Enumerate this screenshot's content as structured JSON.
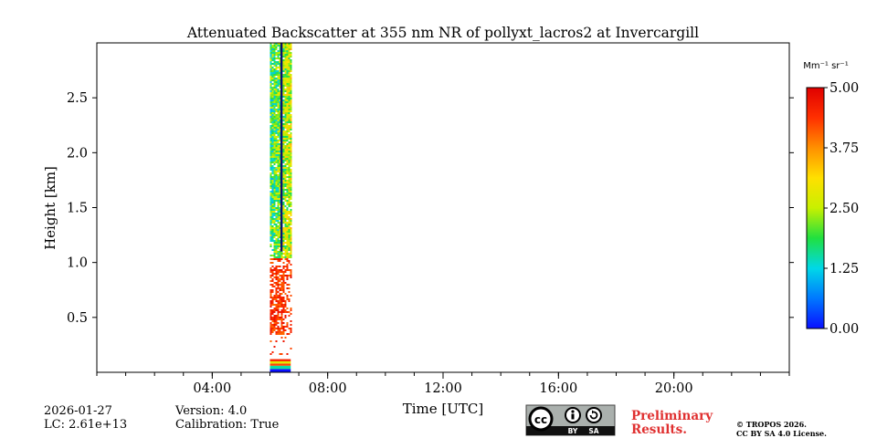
{
  "chart_data": {
    "type": "heatmap",
    "title": "Attenuated Backscatter at 355 nm NR of pollyxt_lacros2 at Invercargill",
    "xlabel": "Time [UTC]",
    "ylabel": "Height [km]",
    "xlim_hours": [
      0,
      24
    ],
    "ylim_km": [
      0,
      3.0
    ],
    "x_ticks": [
      {
        "value": 4,
        "label": "04:00"
      },
      {
        "value": 8,
        "label": "08:00"
      },
      {
        "value": 12,
        "label": "12:00"
      },
      {
        "value": 16,
        "label": "16:00"
      },
      {
        "value": 20,
        "label": "20:00"
      }
    ],
    "x_minor_step_hours": 1,
    "y_ticks": [
      {
        "value": 0.5,
        "label": "0.5"
      },
      {
        "value": 1.0,
        "label": "1.0"
      },
      {
        "value": 1.5,
        "label": "1.5"
      },
      {
        "value": 2.0,
        "label": "2.0"
      },
      {
        "value": 2.5,
        "label": "2.5"
      }
    ],
    "colorbar": {
      "unit_label": "Mm⁻¹ sr⁻¹",
      "range": [
        0.0,
        5.0
      ],
      "ticks": [
        {
          "value": 0.0,
          "label": "0.00"
        },
        {
          "value": 1.25,
          "label": "1.25"
        },
        {
          "value": 2.5,
          "label": "2.50"
        },
        {
          "value": 3.75,
          "label": "3.75"
        },
        {
          "value": 5.0,
          "label": "5.00"
        }
      ]
    },
    "data_segment": {
      "time_start_hours": 6.0,
      "time_end_hours": 6.72,
      "dark_streak_hours": 6.4,
      "layers": [
        {
          "height_from_km": 0.0,
          "height_to_km": 0.03,
          "level": 0.0
        },
        {
          "height_from_km": 0.03,
          "height_to_km": 0.06,
          "level": 0.3
        },
        {
          "height_from_km": 0.06,
          "height_to_km": 0.08,
          "level": 0.85
        },
        {
          "height_from_km": 0.08,
          "height_to_km": 0.1,
          "level": 0.55
        },
        {
          "height_from_km": 0.1,
          "height_to_km": 0.12,
          "level": 0.9
        }
      ],
      "sparse_region_km": [
        0.12,
        0.35
      ],
      "aerosol_region": {
        "height_from_km": 0.35,
        "height_to_km": 1.05,
        "mean_level": 0.88
      },
      "upper_region": {
        "height_from_km": 1.05,
        "height_to_km": 3.0,
        "mean_level": 0.45
      }
    }
  },
  "meta": {
    "date": "2026-01-27",
    "lc": "LC: 2.61e+13",
    "version": "Version: 4.0",
    "calibration": "Calibration: True"
  },
  "footer": {
    "preliminary_line1": "Preliminary",
    "preliminary_line2": "Results.",
    "copyright_line1": "© TROPOS 2026.",
    "copyright_line2": "CC BY SA 4.0 License.",
    "badge_cc": "cc",
    "badge_by": "BY",
    "badge_sa": "SA"
  },
  "colors": {
    "jet_stops": [
      "#0a10ff",
      "#0078ff",
      "#00d8e8",
      "#20e040",
      "#c8f000",
      "#ffe000",
      "#ff9000",
      "#ff3000",
      "#e00000"
    ],
    "preliminary": "#e03030"
  }
}
